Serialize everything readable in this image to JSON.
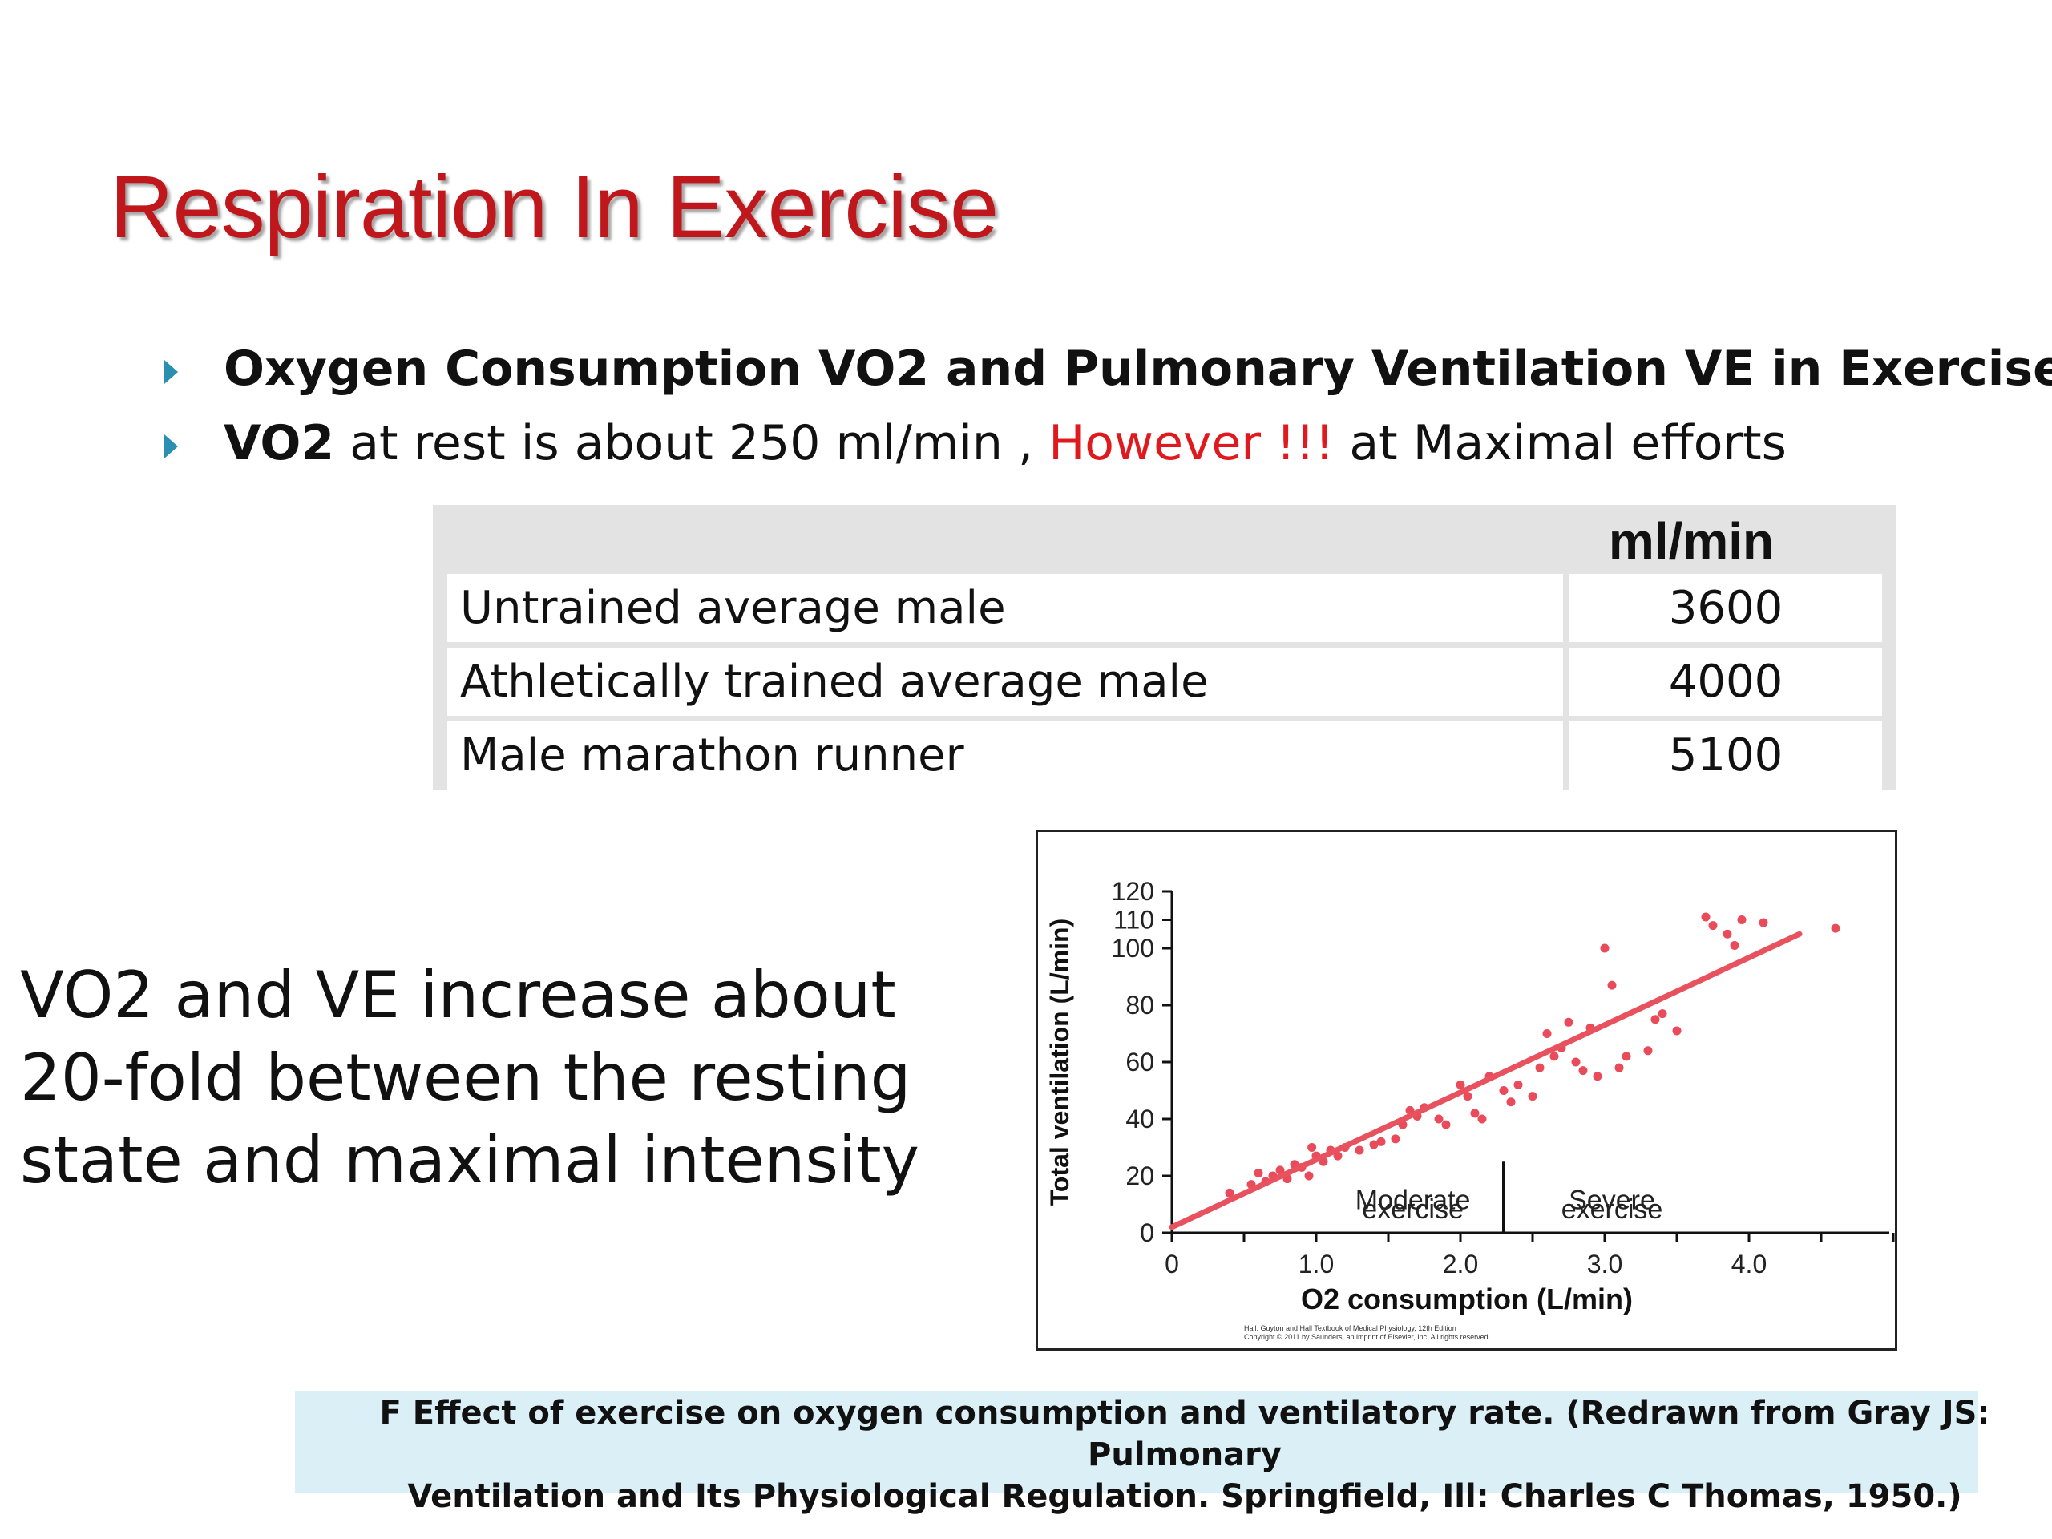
{
  "slide": {
    "title": "Respiration In Exercise",
    "bullets": [
      {
        "text": "Oxygen Consumption VO2 and Pulmonary Ventilation VE in Exercise"
      },
      {
        "prefix": "VO2",
        "middle": " at rest is about 250 ml/min , ",
        "highlight": "However !!!",
        "suffix": " at Maximal efforts"
      }
    ],
    "table": {
      "header": "ml/min",
      "rows": [
        {
          "label": "Untrained average male",
          "value": "3600"
        },
        {
          "label": "Athletically trained average male",
          "value": "4000"
        },
        {
          "label": "Male marathon runner",
          "value": "5100"
        }
      ]
    },
    "big_text": {
      "line1_a": "VO2",
      "line1_b": " and ",
      "line1_c": "VE",
      "line1_d": " increase about",
      "line2": "20-fold between the resting",
      "line3": "state and maximal intensity"
    },
    "caption": {
      "line1": "F Effect of exercise on oxygen consumption and ventilatory rate. (Redrawn from Gray JS: Pulmonary",
      "line2": "Ventilation and Its Physiological Regulation. Springfield, Ill: Charles C Thomas, 1950.)"
    }
  },
  "chart_data": {
    "type": "scatter",
    "xlabel": "O2 consumption (L/min)",
    "ylabel": "Total ventilation (L/min)",
    "xlim": [
      0,
      5.0
    ],
    "ylim": [
      0,
      120
    ],
    "x_ticks": [
      "0",
      "1.0",
      "2.0",
      "3.0",
      "4.0"
    ],
    "y_ticks": [
      "0",
      "20",
      "40",
      "60",
      "80",
      "100",
      "110",
      "120"
    ],
    "regions": [
      {
        "label_line1": "Moderate",
        "label_line2": "exercise",
        "x_end": 2.3
      },
      {
        "label_line1": "Severe",
        "label_line2": "exercise"
      }
    ],
    "source_note_line1": "Hall: Guyton and Hall Textbook of Medical Physiology, 12th Edition",
    "source_note_line2": "Copyright © 2011 by Saunders, an imprint of Elsevier, Inc. All rights reserved.",
    "trend_line": {
      "x": [
        0,
        4.35
      ],
      "y": [
        2,
        105
      ]
    },
    "points": [
      [
        0.4,
        14
      ],
      [
        0.55,
        17
      ],
      [
        0.6,
        21
      ],
      [
        0.65,
        18
      ],
      [
        0.7,
        20
      ],
      [
        0.75,
        22
      ],
      [
        0.8,
        19
      ],
      [
        0.85,
        24
      ],
      [
        0.9,
        23
      ],
      [
        0.95,
        20
      ],
      [
        1.0,
        27
      ],
      [
        1.05,
        25
      ],
      [
        1.1,
        29
      ],
      [
        0.97,
        30
      ],
      [
        1.15,
        27
      ],
      [
        1.2,
        30
      ],
      [
        1.3,
        29
      ],
      [
        1.4,
        31
      ],
      [
        1.45,
        32
      ],
      [
        1.55,
        33
      ],
      [
        1.6,
        38
      ],
      [
        1.65,
        43
      ],
      [
        1.7,
        41
      ],
      [
        1.75,
        44
      ],
      [
        1.85,
        40
      ],
      [
        1.9,
        38
      ],
      [
        2.0,
        52
      ],
      [
        2.05,
        48
      ],
      [
        2.1,
        42
      ],
      [
        2.15,
        40
      ],
      [
        2.2,
        55
      ],
      [
        2.3,
        50
      ],
      [
        2.35,
        46
      ],
      [
        2.4,
        52
      ],
      [
        2.5,
        48
      ],
      [
        2.55,
        58
      ],
      [
        2.6,
        70
      ],
      [
        2.65,
        62
      ],
      [
        2.7,
        65
      ],
      [
        2.75,
        74
      ],
      [
        2.8,
        60
      ],
      [
        2.85,
        57
      ],
      [
        2.9,
        72
      ],
      [
        2.95,
        55
      ],
      [
        3.0,
        100
      ],
      [
        3.05,
        87
      ],
      [
        3.1,
        58
      ],
      [
        3.15,
        62
      ],
      [
        3.3,
        64
      ],
      [
        3.35,
        75
      ],
      [
        3.4,
        77
      ],
      [
        3.5,
        71
      ],
      [
        3.7,
        111
      ],
      [
        3.75,
        108
      ],
      [
        3.85,
        105
      ],
      [
        3.9,
        101
      ],
      [
        3.95,
        110
      ],
      [
        4.1,
        109
      ],
      [
        4.6,
        107
      ]
    ]
  }
}
